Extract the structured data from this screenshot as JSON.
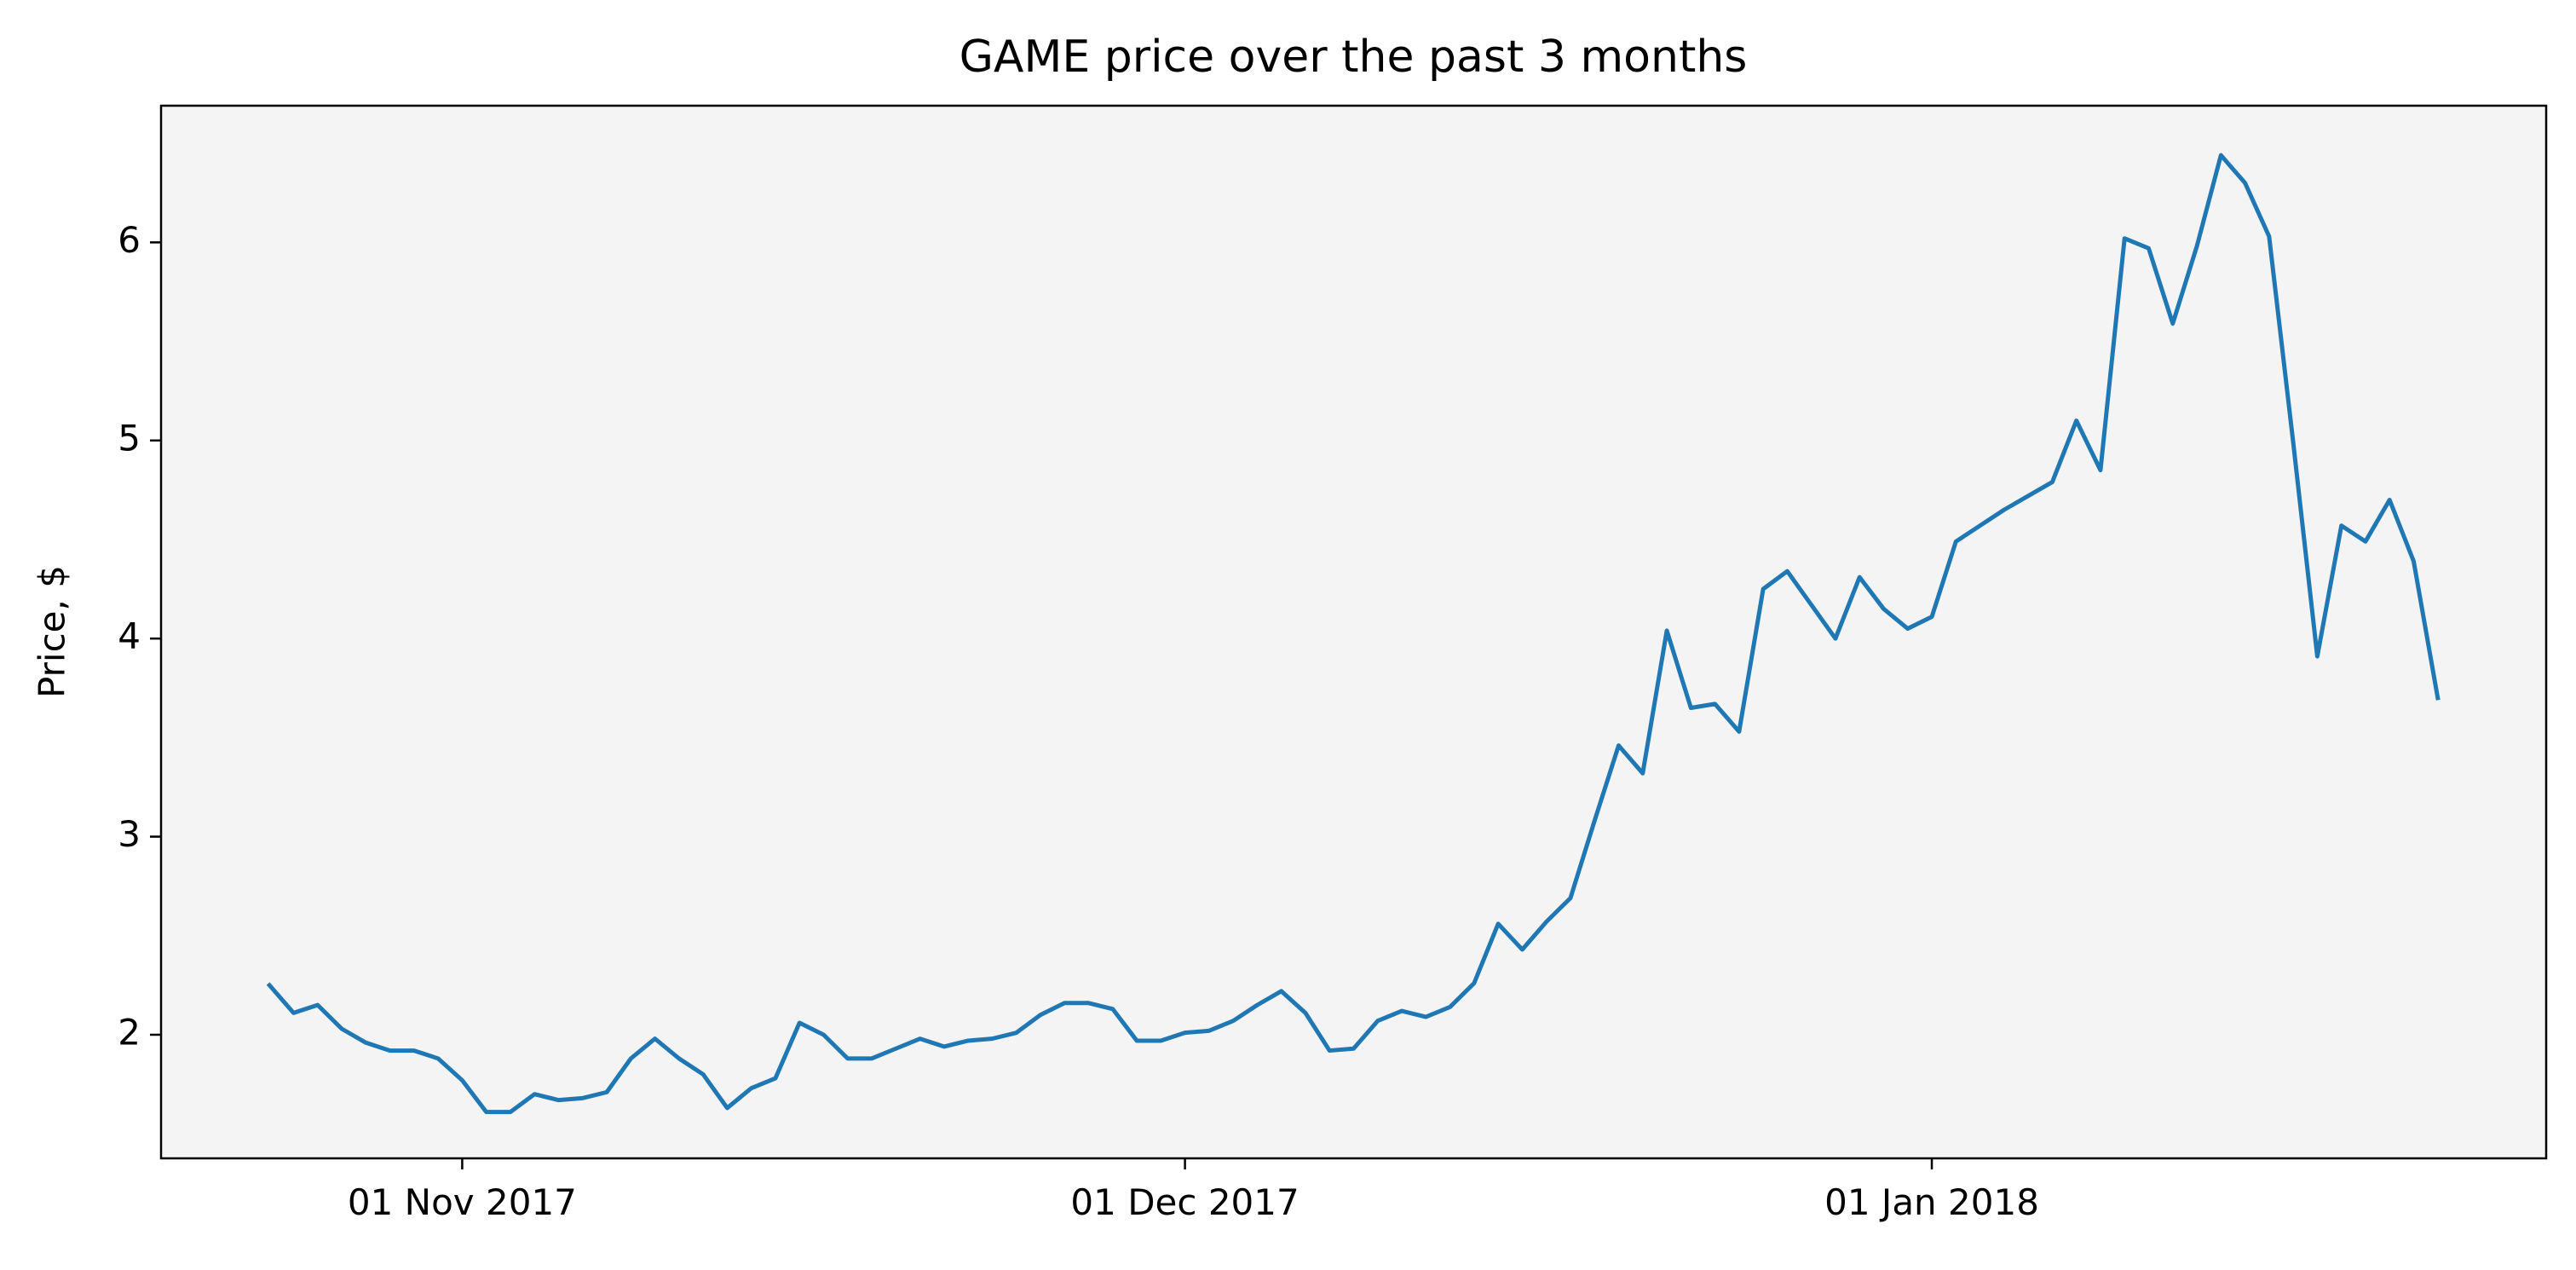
{
  "chart_data": {
    "type": "line",
    "title": "GAME price over the past 3 months",
    "ylabel": "Price, $",
    "color": "#1f77b4",
    "background": "#f4f4f4",
    "x": [
      "2017-10-24",
      "2017-10-25",
      "2017-10-26",
      "2017-10-27",
      "2017-10-28",
      "2017-10-29",
      "2017-10-30",
      "2017-10-31",
      "2017-11-01",
      "2017-11-02",
      "2017-11-03",
      "2017-11-04",
      "2017-11-05",
      "2017-11-06",
      "2017-11-07",
      "2017-11-08",
      "2017-11-09",
      "2017-11-10",
      "2017-11-11",
      "2017-11-12",
      "2017-11-13",
      "2017-11-14",
      "2017-11-15",
      "2017-11-16",
      "2017-11-17",
      "2017-11-18",
      "2017-11-19",
      "2017-11-20",
      "2017-11-21",
      "2017-11-22",
      "2017-11-23",
      "2017-11-24",
      "2017-11-25",
      "2017-11-26",
      "2017-11-27",
      "2017-11-28",
      "2017-11-29",
      "2017-11-30",
      "2017-12-01",
      "2017-12-02",
      "2017-12-03",
      "2017-12-04",
      "2017-12-05",
      "2017-12-06",
      "2017-12-07",
      "2017-12-08",
      "2017-12-09",
      "2017-12-10",
      "2017-12-11",
      "2017-12-12",
      "2017-12-13",
      "2017-12-14",
      "2017-12-15",
      "2017-12-16",
      "2017-12-17",
      "2017-12-18",
      "2017-12-19",
      "2017-12-20",
      "2017-12-21",
      "2017-12-22",
      "2017-12-23",
      "2017-12-24",
      "2017-12-25",
      "2017-12-26",
      "2017-12-27",
      "2017-12-28",
      "2017-12-29",
      "2017-12-30",
      "2017-12-31",
      "2018-01-01",
      "2018-01-02",
      "2018-01-03",
      "2018-01-04",
      "2018-01-05",
      "2018-01-06",
      "2018-01-07",
      "2018-01-08",
      "2018-01-09",
      "2018-01-10",
      "2018-01-11",
      "2018-01-12",
      "2018-01-13",
      "2018-01-14",
      "2018-01-15",
      "2018-01-16",
      "2018-01-17",
      "2018-01-18",
      "2018-01-19",
      "2018-01-20",
      "2018-01-21",
      "2018-01-22"
    ],
    "values": [
      2.25,
      2.11,
      2.15,
      2.03,
      1.96,
      1.92,
      1.92,
      1.88,
      1.77,
      1.61,
      1.61,
      1.7,
      1.67,
      1.68,
      1.71,
      1.88,
      1.98,
      1.88,
      1.8,
      1.63,
      1.73,
      1.78,
      2.06,
      2.0,
      1.88,
      1.88,
      1.93,
      1.98,
      1.94,
      1.97,
      1.98,
      2.01,
      2.1,
      2.16,
      2.16,
      2.13,
      1.97,
      1.97,
      2.01,
      2.02,
      2.07,
      2.15,
      2.22,
      2.11,
      1.92,
      1.93,
      2.07,
      2.12,
      2.09,
      2.14,
      2.26,
      2.56,
      2.43,
      2.57,
      2.69,
      3.08,
      3.46,
      3.32,
      4.04,
      3.65,
      3.67,
      3.53,
      4.25,
      4.34,
      4.17,
      4.0,
      4.31,
      4.15,
      4.05,
      4.11,
      4.49,
      4.57,
      4.65,
      4.72,
      4.79,
      5.1,
      4.85,
      6.02,
      5.97,
      5.59,
      5.98,
      6.44,
      6.3,
      6.03,
      4.99,
      3.91,
      4.57,
      4.49,
      4.7,
      4.39,
      3.7
    ],
    "xlim": [
      "2017-10-19T12:00:00Z",
      "2018-01-26T12:00:00Z"
    ],
    "xticks": [
      {
        "value": "2017-11-01",
        "label": "01 Nov 2017"
      },
      {
        "value": "2017-12-01",
        "label": "01 Dec 2017"
      },
      {
        "value": "2018-01-01",
        "label": "01 Jan 2018"
      }
    ],
    "ylim": [
      1.376,
      6.69
    ],
    "yticks": [
      2,
      3,
      4,
      5,
      6
    ]
  }
}
